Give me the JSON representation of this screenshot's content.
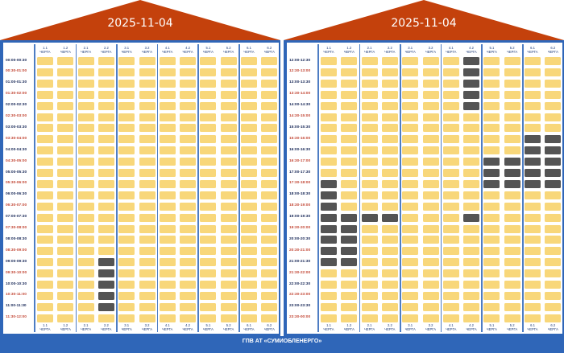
{
  "colors": {
    "on": "#f8d77a",
    "off": "#545454",
    "roof": "#c4410c",
    "frame": "#2f66b8",
    "label_default": "#1b2b5a",
    "label_highlight": "#c44c3b",
    "footer_text": "#ffffff"
  },
  "queue_labels": [
    {
      "num": "1.1",
      "word": "ЧЕРГА"
    },
    {
      "num": "1.2",
      "word": "ЧЕРГА"
    },
    {
      "num": "2.1",
      "word": "ЧЕРГА"
    },
    {
      "num": "2.2",
      "word": "ЧЕРГА"
    },
    {
      "num": "3.1",
      "word": "ЧЕРГА"
    },
    {
      "num": "3.2",
      "word": "ЧЕРГА"
    },
    {
      "num": "4.1",
      "word": "ЧЕРГА"
    },
    {
      "num": "4.2",
      "word": "ЧЕРГА"
    },
    {
      "num": "5.1",
      "word": "ЧЕРГА"
    },
    {
      "num": "5.2",
      "word": "ЧЕРГА"
    },
    {
      "num": "6.1",
      "word": "ЧЕРГА"
    },
    {
      "num": "6.2",
      "word": "ЧЕРГА"
    }
  ],
  "panels": [
    {
      "date": "2025-11-04",
      "rows": [
        {
          "t": "00:00-00:30",
          "hl": false
        },
        {
          "t": "00:30-01:00",
          "hl": true
        },
        {
          "t": "01:00-01:30",
          "hl": false
        },
        {
          "t": "01:30-02:00",
          "hl": true
        },
        {
          "t": "02:00-02:30",
          "hl": false
        },
        {
          "t": "02:30-03:00",
          "hl": true
        },
        {
          "t": "03:00-03:30",
          "hl": false
        },
        {
          "t": "03:30-04:00",
          "hl": true
        },
        {
          "t": "04:00-04:30",
          "hl": false
        },
        {
          "t": "04:30-05:00",
          "hl": true
        },
        {
          "t": "05:00-05:30",
          "hl": false
        },
        {
          "t": "05:30-06:00",
          "hl": true
        },
        {
          "t": "06:00-06:30",
          "hl": false
        },
        {
          "t": "06:30-07:00",
          "hl": true
        },
        {
          "t": "07:00-07:30",
          "hl": false
        },
        {
          "t": "07:30-08:00",
          "hl": true
        },
        {
          "t": "08:00-08:30",
          "hl": false
        },
        {
          "t": "08:30-09:00",
          "hl": true
        },
        {
          "t": "09:00-09:30",
          "hl": false
        },
        {
          "t": "09:30-10:00",
          "hl": true
        },
        {
          "t": "10:00-10:30",
          "hl": false
        },
        {
          "t": "10:30-11:00",
          "hl": true
        },
        {
          "t": "11:00-11:30",
          "hl": false
        },
        {
          "t": "11:30-12:00",
          "hl": true
        }
      ],
      "outages": [
        [
          18,
          3
        ],
        [
          19,
          3
        ],
        [
          20,
          3
        ],
        [
          21,
          3
        ],
        [
          22,
          3
        ]
      ]
    },
    {
      "date": "2025-11-04",
      "rows": [
        {
          "t": "12:00-12:30",
          "hl": false
        },
        {
          "t": "12:30-13:00",
          "hl": true
        },
        {
          "t": "13:00-13:30",
          "hl": false
        },
        {
          "t": "13:30-14:00",
          "hl": true
        },
        {
          "t": "14:00-14:30",
          "hl": false
        },
        {
          "t": "14:30-15:00",
          "hl": true
        },
        {
          "t": "15:00-15:30",
          "hl": false
        },
        {
          "t": "15:30-16:00",
          "hl": true
        },
        {
          "t": "16:00-16:30",
          "hl": false
        },
        {
          "t": "16:30-17:00",
          "hl": true
        },
        {
          "t": "17:00-17:30",
          "hl": false
        },
        {
          "t": "17:30-18:00",
          "hl": true
        },
        {
          "t": "18:00-18:30",
          "hl": false
        },
        {
          "t": "18:30-19:00",
          "hl": true
        },
        {
          "t": "19:00-19:30",
          "hl": false
        },
        {
          "t": "19:30-20:00",
          "hl": true
        },
        {
          "t": "20:00-20:30",
          "hl": false
        },
        {
          "t": "20:30-21:00",
          "hl": true
        },
        {
          "t": "21:00-21:30",
          "hl": false
        },
        {
          "t": "21:30-22:00",
          "hl": true
        },
        {
          "t": "22:00-22:30",
          "hl": false
        },
        {
          "t": "22:30-23:00",
          "hl": true
        },
        {
          "t": "23:00-23:30",
          "hl": false
        },
        {
          "t": "23:30-00:00",
          "hl": true
        }
      ],
      "outages": [
        [
          0,
          7
        ],
        [
          1,
          7
        ],
        [
          2,
          7
        ],
        [
          3,
          7
        ],
        [
          4,
          7
        ],
        [
          7,
          10
        ],
        [
          7,
          11
        ],
        [
          8,
          10
        ],
        [
          8,
          11
        ],
        [
          9,
          8
        ],
        [
          9,
          9
        ],
        [
          9,
          10
        ],
        [
          9,
          11
        ],
        [
          10,
          8
        ],
        [
          10,
          9
        ],
        [
          10,
          10
        ],
        [
          10,
          11
        ],
        [
          11,
          0
        ],
        [
          11,
          8
        ],
        [
          11,
          9
        ],
        [
          11,
          10
        ],
        [
          11,
          11
        ],
        [
          12,
          0
        ],
        [
          13,
          0
        ],
        [
          14,
          0
        ],
        [
          14,
          1
        ],
        [
          14,
          2
        ],
        [
          14,
          3
        ],
        [
          14,
          7
        ],
        [
          15,
          0
        ],
        [
          15,
          1
        ],
        [
          16,
          0
        ],
        [
          16,
          1
        ],
        [
          17,
          0
        ],
        [
          17,
          1
        ],
        [
          18,
          0
        ],
        [
          18,
          1
        ]
      ]
    }
  ],
  "footer": {
    "text": "ГПВ АТ «СУМИОБЛЕНЕРГО»"
  }
}
